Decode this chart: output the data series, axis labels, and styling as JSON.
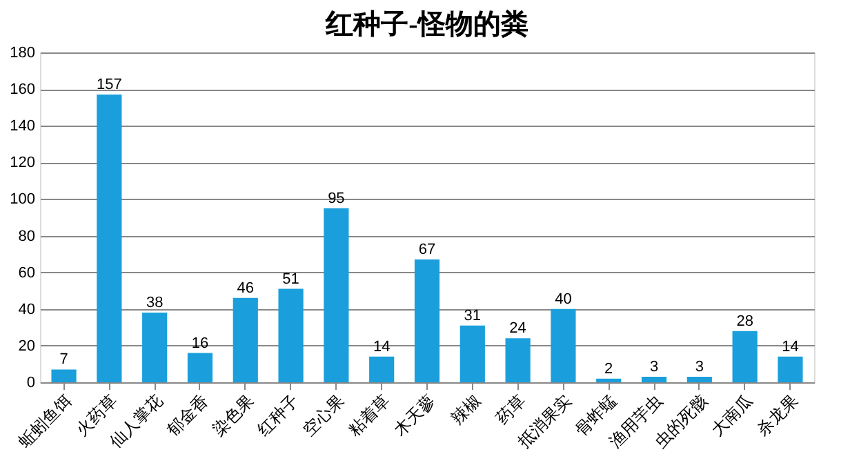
{
  "chart_data": {
    "type": "bar",
    "title": "红种子-怪物的粪",
    "categories": [
      "蚯蚓鱼饵",
      "火药草",
      "仙人掌花",
      "郁金香",
      "染色果",
      "红种子",
      "空心果",
      "粘着草",
      "木天蓼",
      "辣椒",
      "药草",
      "抵消果实",
      "骨蚱蜢",
      "渔用芋虫",
      "虫的死骸",
      "大南瓜",
      "杀龙果"
    ],
    "values": [
      7,
      157,
      38,
      16,
      46,
      51,
      95,
      14,
      67,
      31,
      24,
      40,
      2,
      3,
      3,
      28,
      14
    ],
    "color": "#1a9fdc",
    "ylim": [
      0,
      180
    ],
    "yticks": [
      0,
      20,
      40,
      60,
      80,
      100,
      120,
      140,
      160,
      180
    ],
    "grid": "y",
    "data_labels": true
  }
}
